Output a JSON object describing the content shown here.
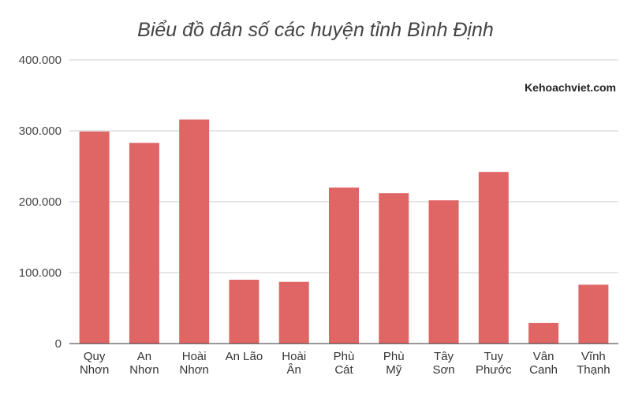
{
  "chart_data": {
    "type": "bar",
    "title": "Biểu đồ dân số các huyện tỉnh Bình Định",
    "watermark": "Kehoachviet.com",
    "xlabel": "",
    "ylabel": "",
    "ylim": [
      0,
      400000
    ],
    "yticks": [
      0,
      100000,
      200000,
      300000,
      400000
    ],
    "ytick_labels": [
      "0",
      "100.000",
      "200.000",
      "300.000",
      "400.000"
    ],
    "grid": true,
    "legend": "none",
    "bar_color": "#e06666",
    "categories": [
      [
        "Quy",
        "Nhơn"
      ],
      [
        "An",
        "Nhơn"
      ],
      [
        "Hoài",
        "Nhơn"
      ],
      [
        "An Lão"
      ],
      [
        "Hoài",
        "Ân"
      ],
      [
        "Phù",
        "Cát"
      ],
      [
        "Phù",
        "Mỹ"
      ],
      [
        "Tây",
        "Sơn"
      ],
      [
        "Tuy",
        "Phước"
      ],
      [
        "Vân",
        "Canh"
      ],
      [
        "Vĩnh",
        "Thạnh"
      ]
    ],
    "values": [
      299000,
      283000,
      316000,
      90000,
      87000,
      220000,
      212000,
      202000,
      242000,
      29000,
      83000
    ]
  }
}
